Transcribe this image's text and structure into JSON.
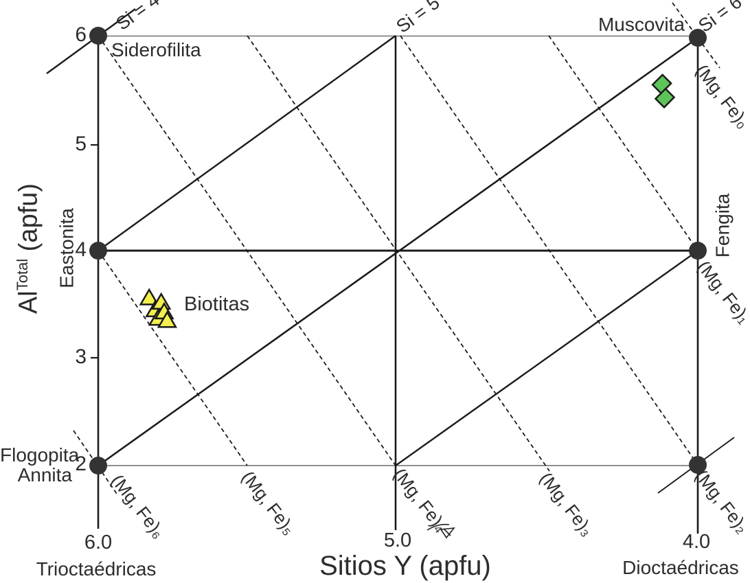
{
  "labels": {
    "x_title": "Sitios Y (apfu)",
    "y_title_main": "Al",
    "y_title_sup": "Total",
    "y_title_rest": " (apfu)"
  },
  "chart_data": {
    "type": "scatter",
    "title": "",
    "xlabel": "Sitios Y (apfu)",
    "ylabel": "AlTotal (apfu)",
    "x_axis": {
      "ticks": [
        "6.0",
        "5.0",
        "4.0"
      ],
      "range": [
        6.0,
        4.0
      ],
      "reversed": true,
      "left_end_label": "Trioctaédricas",
      "right_end_label": "Dioctaédricas"
    },
    "y_axis": {
      "ticks": [
        "6",
        "5",
        "4",
        "3",
        "2"
      ],
      "range": [
        6,
        2
      ]
    },
    "series": [
      {
        "label": "Biotitas",
        "marker": "triangle",
        "fill": "#f2ef4e",
        "points": [
          [
            5.83,
            3.56
          ],
          [
            5.81,
            3.45
          ],
          [
            5.8,
            3.37
          ],
          [
            5.79,
            3.52
          ],
          [
            5.78,
            3.43
          ],
          [
            5.77,
            3.35
          ]
        ]
      },
      {
        "label": "",
        "marker": "diamond",
        "fill": "#5ec45a",
        "points": [
          [
            4.12,
            5.55
          ],
          [
            4.11,
            5.42
          ]
        ]
      }
    ],
    "end_member_labels": [
      {
        "label": "Siderofilita",
        "at": [
          6,
          6
        ]
      },
      {
        "label": "Muscovita",
        "at": [
          4,
          6
        ]
      },
      {
        "label": "Eastonita",
        "at": [
          6,
          4
        ]
      },
      {
        "label": "Fengita",
        "at": [
          4,
          4
        ]
      },
      {
        "label": "Flogopita",
        "at": [
          6,
          2
        ]
      },
      {
        "label": "Annita",
        "at": [
          6,
          2
        ]
      }
    ],
    "si_isolines": [
      {
        "label": "Si = 4",
        "through": [
          6,
          6
        ]
      },
      {
        "label": "Si = 5",
        "from": [
          6,
          4
        ],
        "to": [
          5,
          6
        ]
      },
      {
        "label": "Si = 6",
        "from": [
          6,
          2
        ],
        "to": [
          4,
          6
        ]
      },
      {
        "label": "",
        "from": [
          5,
          2
        ],
        "to": [
          4,
          4
        ]
      }
    ],
    "mgfe_isolines": [
      {
        "label": "(Mg, Fe)₀",
        "through": [
          4,
          6
        ]
      },
      {
        "label": "(Mg, Fe)₁",
        "through": [
          4,
          4
        ]
      },
      {
        "label": "(Mg, Fe)₂",
        "through": [
          4,
          2
        ]
      },
      {
        "label": "(Mg, Fe)₃",
        "through": [
          4.5,
          2
        ]
      },
      {
        "label": "(Mg, Fe)₄",
        "through": [
          5,
          2
        ]
      },
      {
        "label": "(Mg, Fe)₅",
        "through": [
          5.5,
          2
        ]
      },
      {
        "label": "(Mg, Fe)₆",
        "through": [
          6,
          2
        ]
      }
    ],
    "colors": {
      "biotitas_fill": "#f2ef4e",
      "diamond_fill": "#5ec45a",
      "line": "#1b1b1b",
      "edge_gray": "#8f8f8f",
      "node": "#333333"
    }
  }
}
